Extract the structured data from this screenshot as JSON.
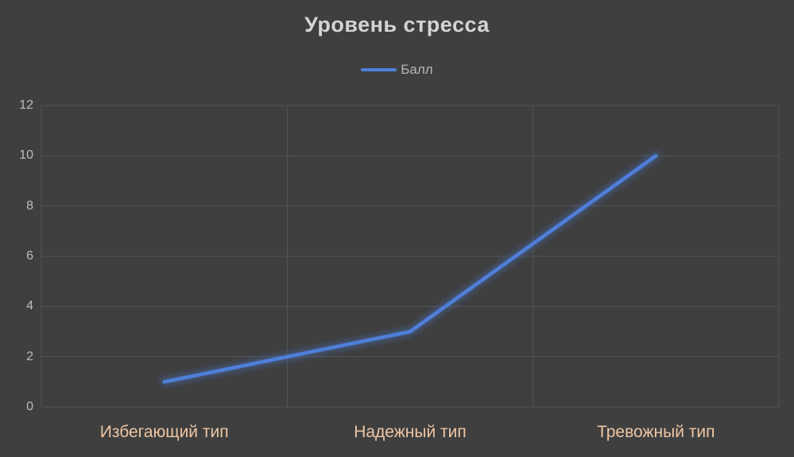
{
  "title": "Уровень стресса",
  "legend": {
    "series_label": "Балл"
  },
  "colors": {
    "background": "#3f3f3f",
    "gridline": "#535353",
    "line": "#4f7fd9",
    "line_glow": "#4472c4",
    "title_text": "#d4d4d4",
    "axis_text": "#bdbdbd",
    "category_text": "#edc6a4",
    "legend_text": "#b6b6b6"
  },
  "chart_data": {
    "type": "line",
    "title": "Уровень стресса",
    "categories": [
      "Избегающий тип",
      "Надежный тип",
      "Тревожный тип"
    ],
    "series": [
      {
        "name": "Балл",
        "values": [
          1,
          3,
          10
        ]
      }
    ],
    "xlabel": "",
    "ylabel": "",
    "ylim": [
      0,
      12
    ],
    "ytick_step": 2,
    "grid": true,
    "legend_position": "top"
  }
}
